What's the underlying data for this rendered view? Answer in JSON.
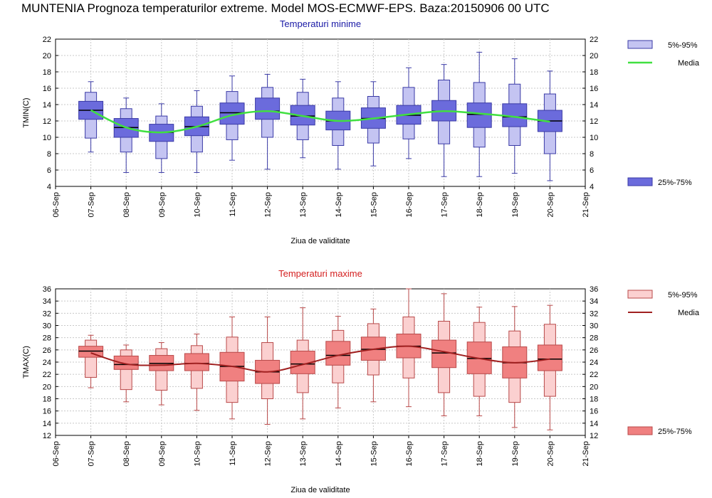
{
  "title": "MUNTENIA  Prognoza temperaturilor extreme.  Model MOS-ECMWF-EPS. Baza:20150906 00 UTC",
  "colors": {
    "tmin_dark": "#6b6bdc",
    "tmin_light": "#c4c4f2",
    "tmin_stroke": "#3a3aa6",
    "tmin_median": "#40e040",
    "tmax_dark": "#f08080",
    "tmax_light": "#fbd0d0",
    "tmax_stroke": "#b84848",
    "tmax_median": "#a02020"
  },
  "chart_data": [
    {
      "type": "box",
      "title": "Temperaturi minime",
      "xlabel": "Ziua de validitate",
      "ylabel": "TMIN(C)",
      "ylim": [
        4,
        22
      ],
      "yticks": [
        4,
        6,
        8,
        10,
        12,
        14,
        16,
        18,
        20,
        22
      ],
      "categories": [
        "06-Sep",
        "07-Sep",
        "08-Sep",
        "09-Sep",
        "10-Sep",
        "11-Sep",
        "12-Sep",
        "13-Sep",
        "14-Sep",
        "15-Sep",
        "16-Sep",
        "17-Sep",
        "18-Sep",
        "19-Sep",
        "20-Sep",
        "21-Sep"
      ],
      "legend": {
        "outer": "5%-95%",
        "median": "Media",
        "inner": "25%-75%"
      },
      "boxes": [
        {
          "day": "07-Sep",
          "min": 8.2,
          "p5": 9.9,
          "p25": 12.2,
          "median": 13.3,
          "p75": 14.4,
          "p95": 15.5,
          "max": 16.8
        },
        {
          "day": "08-Sep",
          "min": 5.7,
          "p5": 8.2,
          "p25": 10.0,
          "median": 11.2,
          "p75": 12.3,
          "p95": 13.5,
          "max": 14.8
        },
        {
          "day": "09-Sep",
          "min": 5.7,
          "p5": 7.4,
          "p25": 9.5,
          "median": 10.6,
          "p75": 11.6,
          "p95": 12.6,
          "max": 14.1
        },
        {
          "day": "10-Sep",
          "min": 5.7,
          "p5": 8.2,
          "p25": 10.2,
          "median": 11.3,
          "p75": 12.5,
          "p95": 13.8,
          "max": 15.7
        },
        {
          "day": "11-Sep",
          "min": 7.2,
          "p5": 9.7,
          "p25": 11.6,
          "median": 13.0,
          "p75": 14.2,
          "p95": 15.6,
          "max": 17.5
        },
        {
          "day": "12-Sep",
          "min": 6.1,
          "p5": 10.0,
          "p25": 12.2,
          "median": 13.2,
          "p75": 14.8,
          "p95": 16.1,
          "max": 17.7
        },
        {
          "day": "13-Sep",
          "min": 7.5,
          "p5": 9.7,
          "p25": 11.5,
          "median": 12.6,
          "p75": 13.9,
          "p95": 15.5,
          "max": 17.1
        },
        {
          "day": "14-Sep",
          "min": 6.1,
          "p5": 9.0,
          "p25": 10.9,
          "median": 12.0,
          "p75": 13.2,
          "p95": 14.8,
          "max": 16.8
        },
        {
          "day": "15-Sep",
          "min": 6.5,
          "p5": 9.3,
          "p25": 11.1,
          "median": 12.3,
          "p75": 13.6,
          "p95": 15.0,
          "max": 16.8
        },
        {
          "day": "16-Sep",
          "min": 7.4,
          "p5": 9.8,
          "p25": 11.6,
          "median": 12.7,
          "p75": 13.9,
          "p95": 16.1,
          "max": 18.5
        },
        {
          "day": "17-Sep",
          "min": 5.2,
          "p5": 9.2,
          "p25": 12.0,
          "median": 13.2,
          "p75": 14.5,
          "p95": 17.0,
          "max": 18.9
        },
        {
          "day": "18-Sep",
          "min": 5.2,
          "p5": 8.8,
          "p25": 11.2,
          "median": 12.8,
          "p75": 14.2,
          "p95": 16.7,
          "max": 20.4
        },
        {
          "day": "19-Sep",
          "min": 5.6,
          "p5": 9.0,
          "p25": 11.3,
          "median": 12.5,
          "p75": 14.1,
          "p95": 16.5,
          "max": 19.6
        },
        {
          "day": "20-Sep",
          "min": 4.7,
          "p5": 8.0,
          "p25": 10.7,
          "median": 12.0,
          "p75": 13.3,
          "p95": 15.3,
          "max": 18.1
        }
      ],
      "media_line": [
        13.3,
        11.2,
        10.6,
        11.3,
        12.7,
        13.2,
        12.6,
        12.0,
        12.3,
        12.8,
        13.2,
        12.9,
        12.5,
        11.9
      ]
    },
    {
      "type": "box",
      "title": "Temperaturi maxime",
      "xlabel": "Ziua de validitate",
      "ylabel": "TMAX(C)",
      "ylim": [
        12,
        36
      ],
      "yticks": [
        12,
        14,
        16,
        18,
        20,
        22,
        24,
        26,
        28,
        30,
        32,
        34,
        36
      ],
      "categories": [
        "06-Sep",
        "07-Sep",
        "08-Sep",
        "09-Sep",
        "10-Sep",
        "11-Sep",
        "12-Sep",
        "13-Sep",
        "14-Sep",
        "15-Sep",
        "16-Sep",
        "17-Sep",
        "18-Sep",
        "19-Sep",
        "20-Sep",
        "21-Sep"
      ],
      "legend": {
        "outer": "5%-95%",
        "median": "Media",
        "inner": "25%-75%"
      },
      "boxes": [
        {
          "day": "07-Sep",
          "min": 19.8,
          "p5": 21.5,
          "p25": 24.8,
          "median": 25.8,
          "p75": 26.6,
          "p95": 27.6,
          "max": 28.4
        },
        {
          "day": "08-Sep",
          "min": 17.5,
          "p5": 19.5,
          "p25": 22.8,
          "median": 23.6,
          "p75": 25.0,
          "p95": 26.0,
          "max": 26.8
        },
        {
          "day": "09-Sep",
          "min": 17.0,
          "p5": 19.4,
          "p25": 22.6,
          "median": 23.8,
          "p75": 25.1,
          "p95": 26.2,
          "max": 27.2
        },
        {
          "day": "10-Sep",
          "min": 16.1,
          "p5": 19.7,
          "p25": 22.6,
          "median": 23.8,
          "p75": 25.4,
          "p95": 26.7,
          "max": 28.6
        },
        {
          "day": "11-Sep",
          "min": 14.7,
          "p5": 17.4,
          "p25": 20.9,
          "median": 23.3,
          "p75": 25.6,
          "p95": 28.1,
          "max": 31.4
        },
        {
          "day": "12-Sep",
          "min": 13.8,
          "p5": 18.0,
          "p25": 20.5,
          "median": 22.4,
          "p75": 24.3,
          "p95": 27.2,
          "max": 31.4
        },
        {
          "day": "13-Sep",
          "min": 14.7,
          "p5": 19.0,
          "p25": 22.1,
          "median": 23.7,
          "p75": 25.8,
          "p95": 27.6,
          "max": 32.9
        },
        {
          "day": "14-Sep",
          "min": 16.5,
          "p5": 20.6,
          "p25": 23.5,
          "median": 25.1,
          "p75": 27.4,
          "p95": 29.2,
          "max": 31.5
        },
        {
          "day": "15-Sep",
          "min": 17.5,
          "p5": 21.9,
          "p25": 24.3,
          "median": 26.1,
          "p75": 28.1,
          "p95": 30.3,
          "max": 32.7
        },
        {
          "day": "16-Sep",
          "min": 16.7,
          "p5": 21.4,
          "p25": 24.7,
          "median": 26.6,
          "p75": 28.6,
          "p95": 31.4,
          "max": 36.0
        },
        {
          "day": "17-Sep",
          "min": 15.2,
          "p5": 19.0,
          "p25": 23.1,
          "median": 25.5,
          "p75": 27.6,
          "p95": 30.7,
          "max": 35.2
        },
        {
          "day": "18-Sep",
          "min": 15.2,
          "p5": 18.4,
          "p25": 22.1,
          "median": 24.6,
          "p75": 27.3,
          "p95": 30.5,
          "max": 33.0
        },
        {
          "day": "19-Sep",
          "min": 13.3,
          "p5": 17.4,
          "p25": 21.4,
          "median": 23.9,
          "p75": 26.5,
          "p95": 29.1,
          "max": 33.1
        },
        {
          "day": "20-Sep",
          "min": 12.9,
          "p5": 18.4,
          "p25": 22.6,
          "median": 24.5,
          "p75": 26.8,
          "p95": 30.2,
          "max": 33.3
        }
      ],
      "media_line": [
        25.5,
        23.7,
        23.5,
        23.8,
        23.3,
        22.4,
        23.6,
        25.1,
        26.1,
        26.6,
        25.7,
        24.6,
        23.9,
        24.5
      ]
    }
  ]
}
